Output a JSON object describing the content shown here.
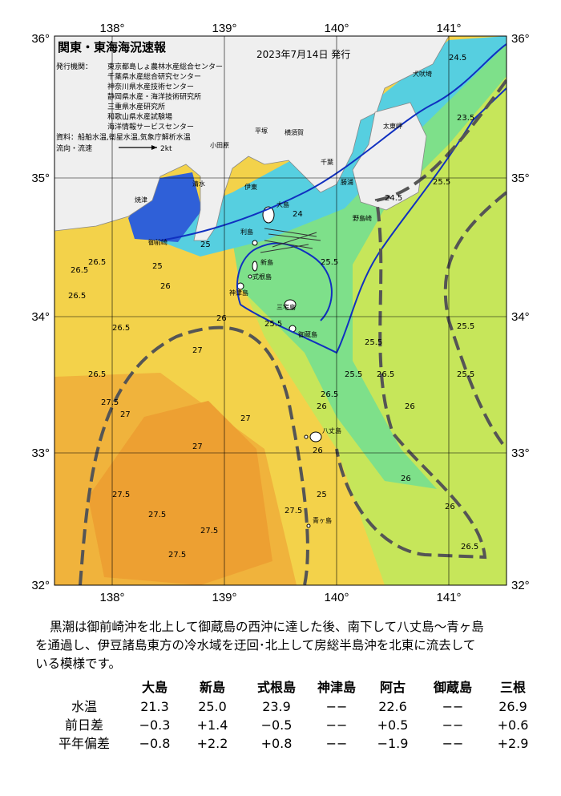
{
  "header": {
    "title": "関東・東海海況速報",
    "date": "2023年7月14日 発行",
    "issuer_label": "発行機関：",
    "issuers": [
      "東京都島しょ農林水産総合センター",
      "千葉県水産総合研究センター",
      "神奈川県水産技術センター",
      "静岡県水産・海洋技術研究所",
      "三重県水産研究所",
      "和歌山県水産試験場",
      "海洋情報サービスセンター"
    ],
    "sources": "資料：船舶水温,衛星水温,気象庁解析水温",
    "legend_label": "流向・流速",
    "legend_speed": "2kt"
  },
  "map": {
    "lon_labels": [
      "138°",
      "139°",
      "140°",
      "141°"
    ],
    "lat_labels": [
      "36°",
      "35°",
      "34°",
      "33°",
      "32°"
    ],
    "place_names": [
      "焼津",
      "御前崎",
      "清水",
      "伊東",
      "小田原",
      "平塚",
      "横須賀",
      "千葉",
      "勝浦",
      "太東岬",
      "犬吠埼",
      "野島崎",
      "大島",
      "利島",
      "新島",
      "式根島",
      "神津島",
      "三宅島",
      "御蔵島",
      "八丈島",
      "青ヶ島"
    ],
    "contour_labels": [
      "26.5",
      "26.5",
      "26",
      "26.5",
      "26.5",
      "26.5",
      "27.5",
      "27",
      "27.5",
      "27.5",
      "27.5",
      "27.5",
      "27",
      "27",
      "27",
      "26",
      "26",
      "25.5",
      "25.5",
      "25.5",
      "25",
      "25",
      "24.5",
      "24.5",
      "24",
      "23.5",
      "25.5",
      "25.5",
      "25.5",
      "26",
      "26",
      "26",
      "26",
      "26.5",
      "26.5",
      "25.5",
      "26.5",
      "27.5",
      "25"
    ]
  },
  "description": [
    "黒潮は御前崎沖を北上して御蔵島の西沖に達した後、南下して八丈島～青ヶ島",
    "を通過し、伊豆諸島東方の冷水域を迂回･北上して房総半島沖を北東に流去して",
    "いる模様です。"
  ],
  "table": {
    "header": [
      "大島",
      "新島",
      "式根島",
      "神津島",
      "阿古",
      "御蔵島",
      "三根"
    ],
    "rows": [
      [
        "水温",
        "21.3",
        "25.0",
        "23.9",
        "−−",
        "22.6",
        "−−",
        "26.9"
      ],
      [
        "前日差",
        "−0.3",
        "+1.4",
        "−0.5",
        "−−",
        "+0.5",
        "−−",
        "+0.6"
      ],
      [
        "平年偏差",
        "−0.8",
        "+2.2",
        "+0.8",
        "−−",
        "−1.9",
        "−−",
        "+2.9"
      ]
    ]
  }
}
